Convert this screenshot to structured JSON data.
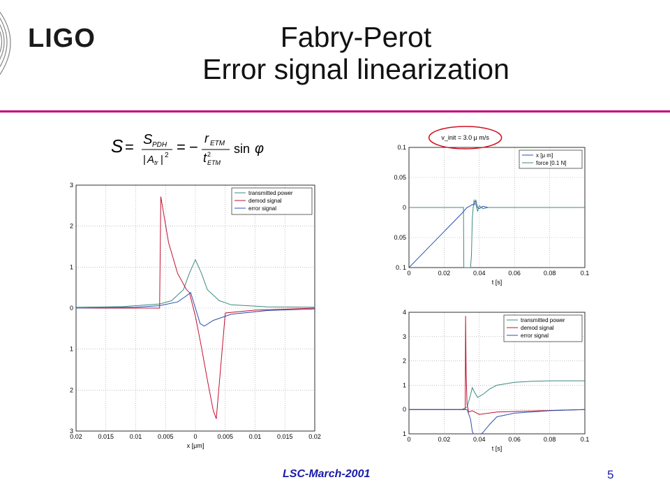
{
  "slide": {
    "logo": "LIGO",
    "title_line1": "Fabry-Perot",
    "title_line2": "Error signal linearization",
    "formula_text": "S = S_PDH / |A_tr|^2 = - r_ETM / t^2_ETM sin φ",
    "footer_left": "LSC-March-2001",
    "page_number": "5",
    "accent_color": "#c4007a",
    "footer_color": "#1a1aa6"
  },
  "chart_data": [
    {
      "type": "line",
      "name": "left",
      "xlabel": "x [μm]",
      "xlim": [
        -0.02,
        0.02
      ],
      "ylim": [
        -3,
        3
      ],
      "xticks": [
        -0.02,
        -0.015,
        -0.01,
        -0.005,
        0,
        0.005,
        0.01,
        0.015,
        0.02
      ],
      "xtick_labels": [
        "0.02",
        "0.015",
        "0.01",
        "0.005",
        "0",
        "0.005",
        "0.01",
        "0.015",
        "0.02"
      ],
      "yticks": [
        3,
        2,
        1,
        0,
        -1,
        -2,
        -3
      ],
      "ytick_labels": [
        "3",
        "2",
        "1",
        "0",
        "1",
        "2",
        "3"
      ],
      "grid": true,
      "legend_position": "top-right",
      "series": [
        {
          "name": "transmitted power",
          "color": "#3f8a7f",
          "x": [
            -0.02,
            -0.012,
            -0.006,
            -0.004,
            -0.002,
            -0.001,
            0,
            0.001,
            0.002,
            0.004,
            0.006,
            0.012,
            0.02
          ],
          "y": [
            0.02,
            0.04,
            0.1,
            0.18,
            0.45,
            0.85,
            1.18,
            0.85,
            0.45,
            0.18,
            0.08,
            0.03,
            0.02
          ]
        },
        {
          "name": "demod signal",
          "color": "#c01030",
          "x": [
            -0.02,
            -0.01,
            -0.006,
            -0.0058,
            -0.0045,
            -0.003,
            -0.0015,
            -0.001,
            0,
            0.001,
            0.002,
            0.003,
            0.0035,
            0.005,
            0.01,
            0.02
          ],
          "y": [
            0.0,
            0.0,
            0.0,
            2.72,
            1.6,
            0.85,
            0.45,
            0.38,
            -0.2,
            -0.95,
            -1.75,
            -2.5,
            -2.7,
            -0.12,
            -0.05,
            0.0
          ],
          "jumps": [
            [
              -0.0058,
              0.0,
              2.72
            ],
            [
              0.0035,
              -2.7,
              -0.12
            ]
          ]
        },
        {
          "name": "error signal",
          "color": "#2a4fb0",
          "x": [
            -0.02,
            -0.01,
            -0.006,
            -0.003,
            -0.0015,
            -0.0008,
            0,
            0.0008,
            0.0015,
            0.003,
            0.006,
            0.012,
            0.02
          ],
          "y": [
            0.0,
            0.02,
            0.06,
            0.15,
            0.3,
            0.38,
            0.0,
            -0.38,
            -0.44,
            -0.3,
            -0.15,
            -0.06,
            -0.02
          ]
        }
      ]
    },
    {
      "type": "line",
      "name": "top-right",
      "annotation": "v_init = 3.0 μ m/s",
      "xlabel": "t [s]",
      "xlim": [
        0,
        0.1
      ],
      "ylim": [
        -0.1,
        0.1
      ],
      "xticks": [
        0,
        0.02,
        0.04,
        0.06,
        0.08,
        0.1
      ],
      "xtick_labels": [
        "0",
        "0.02",
        "0.04",
        "0.06",
        "0.08",
        "0.1"
      ],
      "yticks": [
        0.1,
        0.05,
        0,
        -0.05,
        -0.1
      ],
      "ytick_labels": [
        "0.1",
        "0.05",
        "0",
        "0.05",
        "0. 1"
      ],
      "grid": true,
      "legend_position": "top-right",
      "series": [
        {
          "name": "x [μ m]",
          "color": "#2a4fb0",
          "x": [
            0,
            0.01,
            0.02,
            0.03,
            0.033,
            0.035,
            0.036,
            0.037,
            0.038,
            0.039,
            0.04,
            0.042,
            0.045,
            0.05,
            0.1
          ],
          "y": [
            -0.1,
            -0.07,
            -0.04,
            -0.01,
            0.0,
            0.003,
            0.005,
            0.004,
            0.012,
            0.0,
            -0.002,
            0.002,
            0.0,
            0.0,
            0.0
          ]
        },
        {
          "name": "force [0.1 N]",
          "color": "#3f8a7f",
          "x": [
            0,
            0.031,
            0.0312,
            0.0315,
            0.033,
            0.035,
            0.0355,
            0.036,
            0.0365,
            0.037,
            0.038,
            0.039,
            0.04,
            0.042,
            0.045,
            0.1
          ],
          "y": [
            0.0,
            0.0,
            -0.1,
            -0.1,
            -0.1,
            -0.1,
            -0.08,
            -0.02,
            0.0,
            0.012,
            0.005,
            -0.006,
            0.003,
            -0.002,
            0.0,
            0.0
          ]
        }
      ]
    },
    {
      "type": "line",
      "name": "bottom-right",
      "xlabel": "t [s]",
      "xlim": [
        0,
        0.1
      ],
      "ylim": [
        -1,
        4
      ],
      "xticks": [
        0,
        0.02,
        0.04,
        0.06,
        0.08,
        0.1
      ],
      "xtick_labels": [
        "0",
        "0.02",
        "0.04",
        "0.06",
        "0.08",
        "0.1"
      ],
      "yticks": [
        4,
        3,
        2,
        1,
        0,
        -1
      ],
      "ytick_labels": [
        "4",
        "3",
        "2",
        "1",
        "0",
        "1"
      ],
      "grid": true,
      "legend_position": "top-right",
      "series": [
        {
          "name": "transmitted power",
          "color": "#3f8a7f",
          "x": [
            0,
            0.03,
            0.033,
            0.035,
            0.036,
            0.037,
            0.039,
            0.042,
            0.046,
            0.05,
            0.06,
            0.07,
            0.08,
            0.1
          ],
          "y": [
            0.0,
            0.0,
            0.1,
            0.6,
            0.9,
            0.75,
            0.5,
            0.62,
            0.85,
            1.0,
            1.12,
            1.16,
            1.18,
            1.18
          ]
        },
        {
          "name": "demod signal",
          "color": "#c01030",
          "x": [
            0,
            0.032,
            0.0322,
            0.0325,
            0.033,
            0.034,
            0.036,
            0.04,
            0.05,
            0.1
          ],
          "y": [
            0.0,
            0.0,
            3.85,
            1.5,
            0.2,
            -0.1,
            -0.05,
            -0.2,
            -0.1,
            0.0
          ]
        },
        {
          "name": "error signal",
          "color": "#2a4fb0",
          "x": [
            0,
            0.033,
            0.035,
            0.036,
            0.037,
            0.039,
            0.042,
            0.046,
            0.05,
            0.06,
            0.08,
            0.1
          ],
          "y": [
            0.0,
            0.0,
            -0.4,
            -0.9,
            -1.05,
            -1.1,
            -0.95,
            -0.6,
            -0.3,
            -0.15,
            -0.05,
            0.0
          ]
        }
      ]
    }
  ]
}
